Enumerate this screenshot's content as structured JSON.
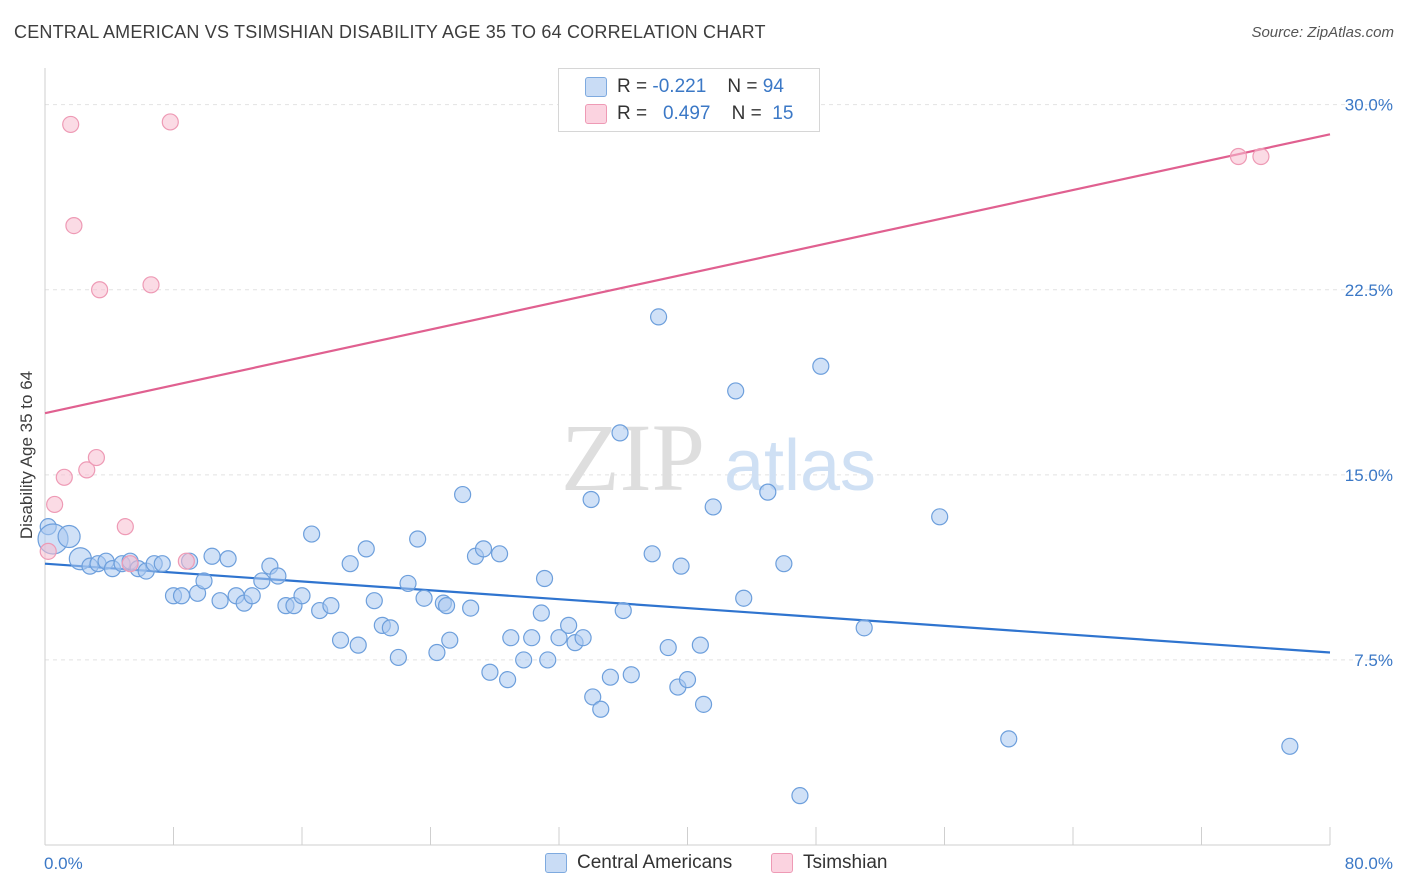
{
  "title": "CENTRAL AMERICAN VS TSIMSHIAN DISABILITY AGE 35 TO 64 CORRELATION CHART",
  "source": "Source: ZipAtlas.com",
  "watermark": {
    "zip": "ZIP",
    "atlas": "atlas"
  },
  "legend": {
    "rows": [
      {
        "r_label": "R =",
        "r_value": "-0.221",
        "n_label": "N =",
        "n_value": "94",
        "color": "#a9c8f0",
        "border": "#7eaadf"
      },
      {
        "r_label": "R =",
        "r_value": "0.497",
        "n_label": "N =",
        "n_value": "15",
        "color": "#f8bdd0",
        "border": "#ee9ab5"
      }
    ]
  },
  "bottom_legend": {
    "series1": "Central Americans",
    "series2": "Tsimshian"
  },
  "chart_data": {
    "type": "scatter",
    "title": "CENTRAL AMERICAN VS TSIMSHIAN DISABILITY AGE 35 TO 64 CORRELATION CHART",
    "xlabel": "",
    "ylabel": "Disability Age 35 to 64",
    "xlim": [
      0,
      80
    ],
    "ylim": [
      0,
      31
    ],
    "x_tick_labels": [
      "0.0%",
      "80.0%"
    ],
    "y_ticks": [
      7.5,
      15.0,
      22.5,
      30.0
    ],
    "y_tick_labels": [
      "7.5%",
      "15.0%",
      "22.5%",
      "30.0%"
    ],
    "grid": "horizontal dashed",
    "series": [
      {
        "name": "Central Americans",
        "color": "#a9c8f0",
        "stroke": "#6d9fdc",
        "line_color": "#2f74cf",
        "trend": {
          "x": [
            0,
            80
          ],
          "y": [
            11.4,
            7.8
          ]
        },
        "points": [
          [
            0.2,
            12.9,
            1
          ],
          [
            0.5,
            12.4,
            3
          ],
          [
            1.5,
            12.5,
            2
          ],
          [
            2.2,
            11.6,
            2
          ],
          [
            2.8,
            11.3,
            1
          ],
          [
            3.3,
            11.4,
            1
          ],
          [
            3.8,
            11.5,
            1
          ],
          [
            4.2,
            11.2,
            1
          ],
          [
            4.8,
            11.4,
            1
          ],
          [
            5.3,
            11.5,
            1
          ],
          [
            5.8,
            11.2,
            1
          ],
          [
            6.3,
            11.1,
            1
          ],
          [
            6.8,
            11.4,
            1
          ],
          [
            7.3,
            11.4,
            1
          ],
          [
            8.0,
            10.1,
            1
          ],
          [
            8.5,
            10.1,
            1
          ],
          [
            9.0,
            11.5,
            1
          ],
          [
            9.5,
            10.2,
            1
          ],
          [
            9.9,
            10.7,
            1
          ],
          [
            10.4,
            11.7,
            1
          ],
          [
            10.9,
            9.9,
            1
          ],
          [
            11.4,
            11.6,
            1
          ],
          [
            11.9,
            10.1,
            1
          ],
          [
            12.4,
            9.8,
            1
          ],
          [
            12.9,
            10.1,
            1
          ],
          [
            13.5,
            10.7,
            1
          ],
          [
            14.0,
            11.3,
            1
          ],
          [
            14.5,
            10.9,
            1
          ],
          [
            15.0,
            9.7,
            1
          ],
          [
            15.5,
            9.7,
            1
          ],
          [
            16.0,
            10.1,
            1
          ],
          [
            16.6,
            12.6,
            1
          ],
          [
            17.1,
            9.5,
            1
          ],
          [
            17.8,
            9.7,
            1
          ],
          [
            18.4,
            8.3,
            1
          ],
          [
            19.0,
            11.4,
            1
          ],
          [
            19.5,
            8.1,
            1
          ],
          [
            20.0,
            12.0,
            1
          ],
          [
            20.5,
            9.9,
            1
          ],
          [
            21.0,
            8.9,
            1
          ],
          [
            21.5,
            8.8,
            1
          ],
          [
            22.0,
            7.6,
            1
          ],
          [
            22.6,
            10.6,
            1
          ],
          [
            23.2,
            12.4,
            1
          ],
          [
            23.6,
            10.0,
            1
          ],
          [
            24.4,
            7.8,
            1
          ],
          [
            24.8,
            9.8,
            1
          ],
          [
            25.0,
            9.7,
            1
          ],
          [
            25.2,
            8.3,
            1
          ],
          [
            26.0,
            14.2,
            1
          ],
          [
            26.5,
            9.6,
            1
          ],
          [
            26.8,
            11.7,
            1
          ],
          [
            27.3,
            12.0,
            1
          ],
          [
            27.7,
            7.0,
            1
          ],
          [
            28.3,
            11.8,
            1
          ],
          [
            28.8,
            6.7,
            1
          ],
          [
            29.0,
            8.4,
            1
          ],
          [
            29.8,
            7.5,
            1
          ],
          [
            30.3,
            8.4,
            1
          ],
          [
            30.9,
            9.4,
            1
          ],
          [
            31.1,
            10.8,
            1
          ],
          [
            31.3,
            7.5,
            1
          ],
          [
            32.0,
            8.4,
            1
          ],
          [
            32.6,
            8.9,
            1
          ],
          [
            33.0,
            8.2,
            1
          ],
          [
            33.5,
            8.4,
            1
          ],
          [
            34.0,
            14.0,
            1
          ],
          [
            34.1,
            6.0,
            1
          ],
          [
            34.6,
            5.5,
            1
          ],
          [
            35.2,
            6.8,
            1
          ],
          [
            35.8,
            16.7,
            1
          ],
          [
            36.0,
            9.5,
            1
          ],
          [
            36.5,
            6.9,
            1
          ],
          [
            37.8,
            11.8,
            1
          ],
          [
            38.2,
            21.4,
            1
          ],
          [
            38.8,
            8.0,
            1
          ],
          [
            39.4,
            6.4,
            1
          ],
          [
            39.6,
            11.3,
            1
          ],
          [
            40.0,
            6.7,
            1
          ],
          [
            40.8,
            8.1,
            1
          ],
          [
            41.0,
            5.7,
            1
          ],
          [
            41.6,
            13.7,
            1
          ],
          [
            43.0,
            18.4,
            1
          ],
          [
            43.5,
            10.0,
            1
          ],
          [
            45.0,
            14.3,
            1
          ],
          [
            46.0,
            11.4,
            1
          ],
          [
            47.0,
            2.0,
            1
          ],
          [
            48.3,
            19.4,
            1
          ],
          [
            51.0,
            8.8,
            1
          ],
          [
            55.7,
            13.3,
            1
          ],
          [
            60.0,
            4.3,
            1
          ],
          [
            77.5,
            4.0,
            1
          ]
        ]
      },
      {
        "name": "Tsimshian",
        "color": "#f8bdd0",
        "stroke": "#ee9ab5",
        "line_color": "#e06090",
        "trend": {
          "x": [
            0,
            80
          ],
          "y": [
            17.5,
            28.8
          ]
        },
        "points": [
          [
            0.2,
            11.9,
            1
          ],
          [
            0.6,
            13.8,
            1
          ],
          [
            1.2,
            14.9,
            1
          ],
          [
            1.6,
            29.2,
            1
          ],
          [
            1.8,
            25.1,
            1
          ],
          [
            2.6,
            15.2,
            1
          ],
          [
            3.2,
            15.7,
            1
          ],
          [
            3.4,
            22.5,
            1
          ],
          [
            5.0,
            12.9,
            1
          ],
          [
            5.3,
            11.4,
            1
          ],
          [
            6.6,
            22.7,
            1
          ],
          [
            7.8,
            29.3,
            1
          ],
          [
            8.8,
            11.5,
            1
          ],
          [
            74.3,
            27.9,
            1
          ],
          [
            75.7,
            27.9,
            1
          ]
        ]
      }
    ]
  }
}
